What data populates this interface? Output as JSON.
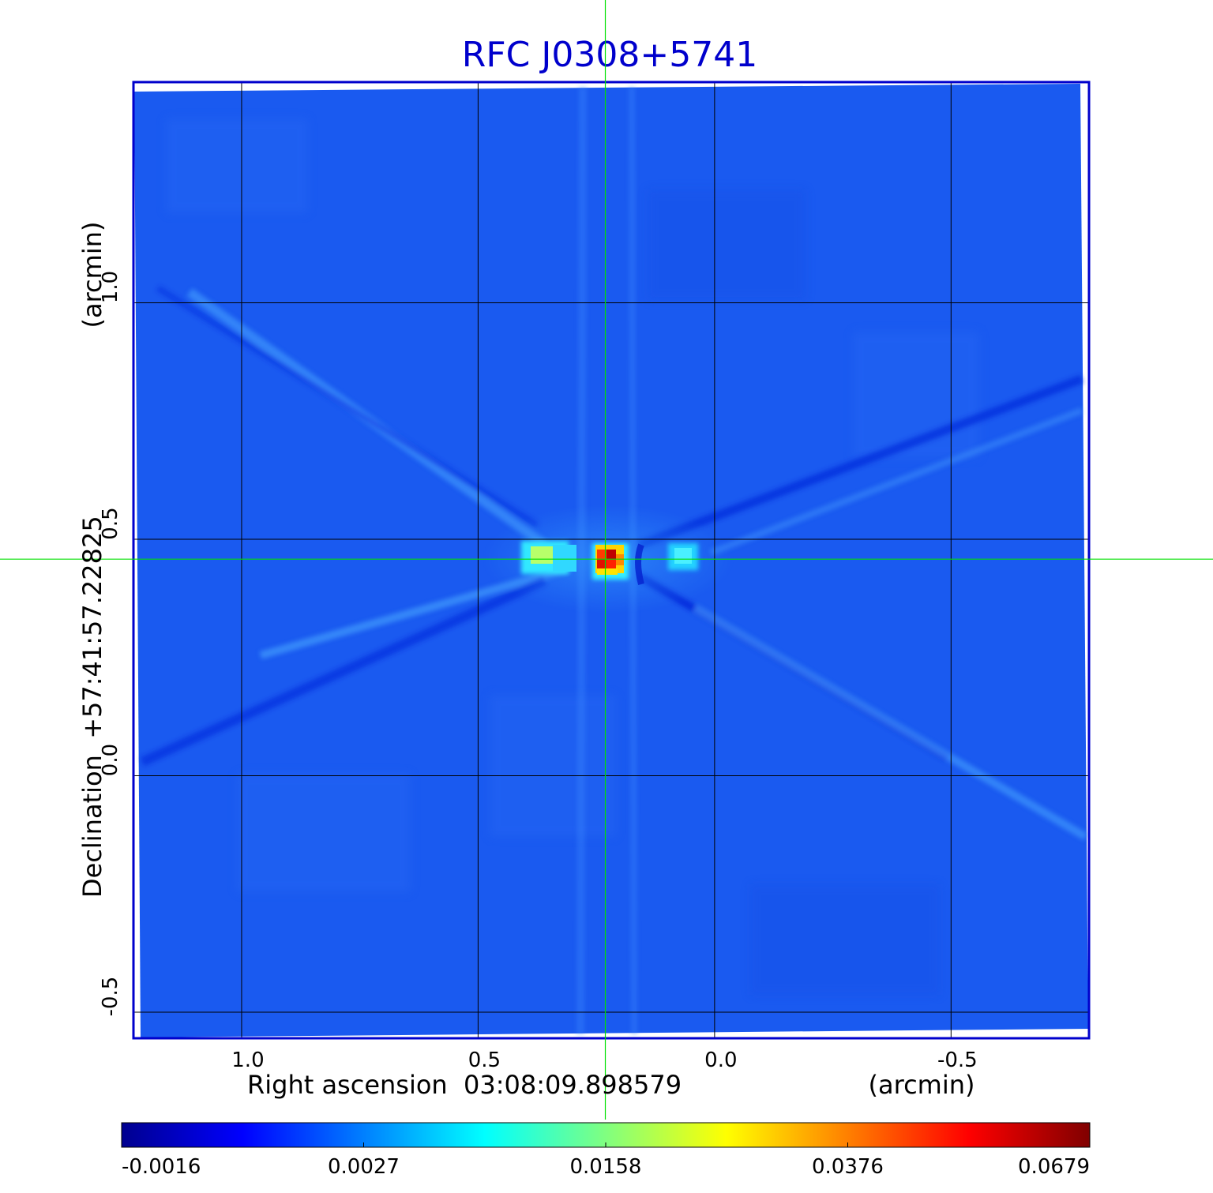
{
  "chart_data": {
    "type": "heatmap",
    "title": "RFC J0308+5741",
    "xlabel": "Right ascension  03:08:09.898579",
    "xunit": "(arcmin)",
    "ylabel": "Declination  +57:41:57.22825",
    "yunit": "(arcmin)",
    "x_ticks": [
      {
        "value": 1.0,
        "label": "1.0"
      },
      {
        "value": 0.5,
        "label": "0.5"
      },
      {
        "value": 0.0,
        "label": "0.0"
      },
      {
        "value": -0.5,
        "label": "-0.5"
      }
    ],
    "y_ticks": [
      {
        "value": 1.0,
        "label": "1.0"
      },
      {
        "value": 0.5,
        "label": "0.5"
      },
      {
        "value": 0.0,
        "label": "0.0"
      },
      {
        "value": -0.5,
        "label": "-0.5"
      }
    ],
    "xlim": [
      1.227,
      -0.79
    ],
    "ylim": [
      -0.555,
      1.465
    ],
    "crosshair": {
      "x": 0.231,
      "y": 0.458
    },
    "grid": true,
    "colormap": "jet",
    "colorbar": {
      "position": "bottom",
      "tick_labels": [
        "-0.0016",
        "0.0027",
        "0.0158",
        "0.0376",
        "0.0679"
      ]
    },
    "features": [
      {
        "name": "peak",
        "x": 0.231,
        "y": 0.458,
        "value": 0.0679
      },
      {
        "name": "side-lobe-left",
        "x": 0.37,
        "y": 0.47,
        "value": 0.015
      },
      {
        "name": "side-lobe-right",
        "x": 0.07,
        "y": 0.46,
        "value": 0.011
      }
    ]
  },
  "colors": {
    "title": "#0000cc",
    "frame": "#0000cc",
    "crosshair": "#00e000",
    "grid": "#000000",
    "background_field": "#1a5af0"
  }
}
